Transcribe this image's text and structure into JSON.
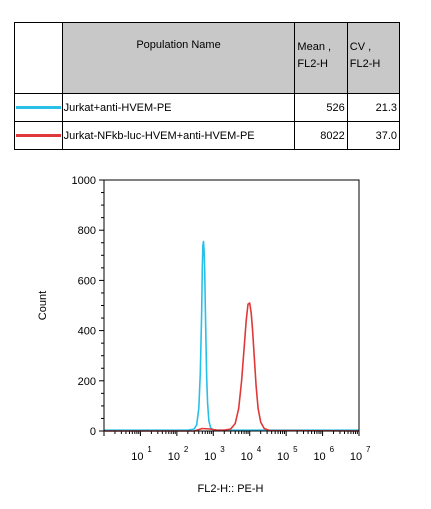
{
  "table": {
    "header_name": "Population Name",
    "header_mean_line1": "Mean ,",
    "header_mean_line2": "FL2-H",
    "header_cv_line1": "CV ,",
    "header_cv_line2": "FL2-H",
    "rows": [
      {
        "name": "Jurkat+anti-HVEM-PE",
        "mean": "526",
        "cv": "21.3",
        "color": "#29c0e8"
      },
      {
        "name": "Jurkat-NFkb-luc-HVEM+anti-HVEM-PE",
        "mean": "8022",
        "cv": "37.0",
        "color": "#e03838"
      }
    ]
  },
  "chart_data": {
    "type": "line",
    "xlabel": "FL2-H:: PE-H",
    "ylabel": "Count",
    "xscale": "log",
    "xlim": [
      1,
      10000000
    ],
    "ylim": [
      0,
      1000
    ],
    "y_ticks": [
      0,
      200,
      400,
      600,
      800,
      1000
    ],
    "y_tick_labels": [
      "0",
      "200",
      "400",
      "600",
      "800",
      "1000"
    ],
    "x_ticks": [
      10,
      100,
      1000,
      10000,
      100000,
      1000000,
      10000000
    ],
    "x_tick_base": [
      "10",
      "10",
      "10",
      "10",
      "10",
      "10",
      "10"
    ],
    "x_tick_exp": [
      "1",
      "2",
      "3",
      "4",
      "5",
      "6",
      "7"
    ],
    "series": [
      {
        "name": "Jurkat+anti-HVEM-PE",
        "color": "#29c0e8",
        "x": [
          1,
          200,
          300,
          350,
          400,
          440,
          480,
          500,
          520,
          540,
          560,
          580,
          600,
          630,
          660,
          700,
          760,
          850,
          1000,
          1300,
          10000000
        ],
        "y": [
          3,
          3,
          8,
          25,
          90,
          230,
          480,
          650,
          740,
          755,
          720,
          640,
          520,
          350,
          210,
          110,
          40,
          12,
          5,
          3,
          3
        ]
      },
      {
        "name": "Jurkat-NFkb-luc-HVEM+anti-HVEM-PE",
        "color": "#e03838",
        "x": [
          1,
          300,
          500,
          800,
          1200,
          2000,
          3000,
          4000,
          5000,
          6000,
          7000,
          8000,
          9000,
          10000,
          11000,
          12000,
          13500,
          15000,
          17000,
          20000,
          25000,
          35000,
          10000000
        ],
        "y": [
          0,
          0,
          10,
          8,
          4,
          3,
          8,
          30,
          90,
          200,
          330,
          440,
          505,
          510,
          470,
          400,
          280,
          180,
          90,
          35,
          10,
          2,
          0
        ]
      }
    ]
  }
}
